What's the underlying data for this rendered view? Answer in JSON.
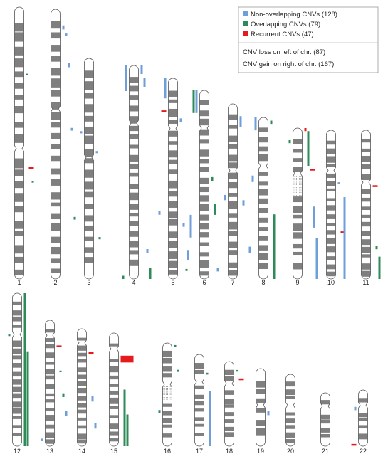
{
  "legend": {
    "items": [
      {
        "label": "Non-overlapping CNVs (128)",
        "color": "#6f9fd8"
      },
      {
        "label": "Overlapping CNVs (79)",
        "color": "#2e8b57"
      },
      {
        "label": "Recurrent CNVs (47)",
        "color": "#e41a1c"
      }
    ],
    "notes": [
      "CNV loss on left of chr. (87)",
      "CNV gain on right of chr. (167)"
    ]
  },
  "colors": {
    "band_dark": "#7f7f7f",
    "band_light": "#ffffff",
    "outline": "#555555",
    "non_overlapping": "#6f9fd8",
    "overlapping": "#2e8b57",
    "recurrent": "#e41a1c"
  },
  "chromosomes": [
    {
      "label": "1",
      "centromere": 0.52,
      "bands": 22,
      "seed": 1,
      "cnvs": [
        {
          "side": "right",
          "type": "overlapping",
          "start": 0.245,
          "end": 0.25
        },
        {
          "side": "right",
          "type": "recurrent",
          "start": 0.588,
          "end": 0.592
        },
        {
          "side": "right",
          "type": "overlapping",
          "start": 0.64,
          "end": 0.644
        }
      ]
    },
    {
      "label": "2",
      "centromere": 0.37,
      "bands": 24,
      "seed": 2,
      "cnvs": [
        {
          "side": "right",
          "type": "non_overlapping",
          "start": 0.06,
          "end": 0.075
        },
        {
          "side": "right",
          "type": "non_overlapping",
          "start": 0.09,
          "end": 0.1
        },
        {
          "side": "right",
          "type": "non_overlapping",
          "start": 0.2,
          "end": 0.215
        },
        {
          "side": "right",
          "type": "non_overlapping",
          "start": 0.44,
          "end": 0.45
        },
        {
          "side": "right",
          "type": "overlapping",
          "start": 0.77,
          "end": 0.78
        }
      ]
    },
    {
      "label": "3",
      "centromere": 0.45,
      "bands": 20,
      "seed": 3,
      "cnvs": [
        {
          "side": "left",
          "type": "non_overlapping",
          "start": 0.33,
          "end": 0.34
        },
        {
          "side": "right",
          "type": "non_overlapping",
          "start": 0.42,
          "end": 0.43
        },
        {
          "side": "right",
          "type": "overlapping",
          "start": 0.81,
          "end": 0.82
        }
      ]
    },
    {
      "label": "4",
      "centromere": 0.27,
      "bands": 22,
      "seed": 4,
      "cnvs": [
        {
          "side": "left",
          "type": "non_overlapping",
          "start": 0.0,
          "end": 0.12
        },
        {
          "side": "right",
          "type": "non_overlapping",
          "start": 0.0,
          "end": 0.04
        },
        {
          "side": "right",
          "type": "non_overlapping",
          "start": 0.06,
          "end": 0.1
        },
        {
          "side": "right",
          "type": "non_overlapping",
          "start": 0.86,
          "end": 0.88
        },
        {
          "side": "right",
          "type": "overlapping",
          "start": 0.95,
          "end": 1.0
        },
        {
          "side": "left",
          "type": "overlapping",
          "start": 0.985,
          "end": 1.0
        }
      ]
    },
    {
      "label": "5",
      "centromere": 0.25,
      "bands": 20,
      "seed": 5,
      "cnvs": [
        {
          "side": "left",
          "type": "non_overlapping",
          "start": 0.0,
          "end": 0.1
        },
        {
          "side": "left",
          "type": "recurrent",
          "start": 0.16,
          "end": 0.165
        },
        {
          "side": "right",
          "type": "non_overlapping",
          "start": 0.2,
          "end": 0.22
        },
        {
          "side": "left",
          "type": "non_overlapping",
          "start": 0.66,
          "end": 0.68
        },
        {
          "side": "right",
          "type": "non_overlapping",
          "start": 0.72,
          "end": 0.74
        },
        {
          "side": "right",
          "type": "overlapping",
          "start": 0.95,
          "end": 0.96
        }
      ]
    },
    {
      "label": "6",
      "centromere": 0.2,
      "bands": 20,
      "seed": 6,
      "cnvs": [
        {
          "side": "left",
          "type": "non_overlapping",
          "start": 0.0,
          "end": 0.12
        },
        {
          "side": "left",
          "type": "overlapping",
          "start": 0.0,
          "end": 0.12
        },
        {
          "side": "right",
          "type": "overlapping",
          "start": 0.46,
          "end": 0.48
        },
        {
          "side": "right",
          "type": "overlapping",
          "start": 0.6,
          "end": 0.66
        },
        {
          "side": "left",
          "type": "non_overlapping",
          "start": 0.66,
          "end": 0.78
        },
        {
          "side": "left",
          "type": "non_overlapping",
          "start": 0.85,
          "end": 0.9
        },
        {
          "side": "right",
          "type": "non_overlapping",
          "start": 0.94,
          "end": 0.96
        }
      ]
    },
    {
      "label": "7",
      "centromere": 0.38,
      "bands": 18,
      "seed": 7,
      "cnvs": [
        {
          "side": "right",
          "type": "non_overlapping",
          "start": 0.07,
          "end": 0.13
        },
        {
          "side": "left",
          "type": "non_overlapping",
          "start": 0.52,
          "end": 0.55
        },
        {
          "side": "right",
          "type": "non_overlapping",
          "start": 0.55,
          "end": 0.58
        }
      ]
    },
    {
      "label": "8",
      "centromere": 0.3,
      "bands": 18,
      "seed": 8,
      "cnvs": [
        {
          "side": "left",
          "type": "non_overlapping",
          "start": 0.0,
          "end": 0.08
        },
        {
          "side": "right",
          "type": "overlapping",
          "start": 0.02,
          "end": 0.04
        },
        {
          "side": "left",
          "type": "non_overlapping",
          "start": 0.36,
          "end": 0.4
        },
        {
          "side": "right",
          "type": "overlapping",
          "start": 0.6,
          "end": 1.0
        },
        {
          "side": "left",
          "type": "non_overlapping",
          "start": 0.8,
          "end": 0.84
        }
      ]
    },
    {
      "label": "9",
      "centromere": 0.3,
      "bands": 16,
      "seed": 9,
      "heterochromatin": [
        0.32,
        0.45
      ],
      "cnvs": [
        {
          "side": "right",
          "type": "recurrent",
          "start": 0.0,
          "end": 0.02
        },
        {
          "side": "right",
          "type": "overlapping",
          "start": 0.02,
          "end": 0.25
        },
        {
          "side": "left",
          "type": "overlapping",
          "start": 0.08,
          "end": 0.1
        },
        {
          "side": "right",
          "type": "recurrent",
          "start": 0.27,
          "end": 0.28
        },
        {
          "side": "right",
          "type": "non_overlapping",
          "start": 0.52,
          "end": 0.66
        },
        {
          "side": "right",
          "type": "non_overlapping",
          "start": 0.73,
          "end": 1.0
        }
      ]
    },
    {
      "label": "10",
      "centromere": 0.27,
      "bands": 18,
      "seed": 10,
      "cnvs": [
        {
          "side": "right",
          "type": "non_overlapping",
          "start": 0.35,
          "end": 0.36
        },
        {
          "side": "right",
          "type": "recurrent",
          "start": 0.68,
          "end": 0.69
        },
        {
          "side": "right",
          "type": "non_overlapping",
          "start": 0.45,
          "end": 1.0
        }
      ]
    },
    {
      "label": "11",
      "centromere": 0.35,
      "bands": 18,
      "seed": 11,
      "cnvs": [
        {
          "side": "right",
          "type": "recurrent",
          "start": 0.37,
          "end": 0.38
        },
        {
          "side": "right",
          "type": "overlapping",
          "start": 0.78,
          "end": 0.8
        },
        {
          "side": "right",
          "type": "overlapping",
          "start": 0.85,
          "end": 1.0
        }
      ]
    },
    {
      "label": "12",
      "centromere": 0.27,
      "bands": 20,
      "seed": 12,
      "cnvs": [
        {
          "side": "right",
          "type": "overlapping",
          "start": 0.0,
          "end": 1.0
        },
        {
          "side": "left",
          "type": "overlapping",
          "start": 0.27,
          "end": 0.28
        },
        {
          "side": "right",
          "type": "overlapping",
          "start": 0.38,
          "end": 1.0
        }
      ]
    },
    {
      "label": "13",
      "centromere": 0.12,
      "bands": 16,
      "seed": 13,
      "acrocentric": true,
      "cnvs": [
        {
          "side": "right",
          "type": "recurrent",
          "start": 0.2,
          "end": 0.22
        },
        {
          "side": "right",
          "type": "overlapping",
          "start": 0.4,
          "end": 0.41
        },
        {
          "side": "right",
          "type": "overlapping",
          "start": 0.58,
          "end": 0.61
        },
        {
          "side": "right",
          "type": "non_overlapping",
          "start": 0.72,
          "end": 0.76
        },
        {
          "side": "left",
          "type": "non_overlapping",
          "start": 0.94,
          "end": 0.96
        }
      ]
    },
    {
      "label": "14",
      "centromere": 0.12,
      "bands": 16,
      "seed": 14,
      "acrocentric": true,
      "cnvs": [
        {
          "side": "right",
          "type": "recurrent",
          "start": 0.2,
          "end": 0.22
        },
        {
          "side": "right",
          "type": "non_overlapping",
          "start": 0.57,
          "end": 0.62
        },
        {
          "side": "right",
          "type": "non_overlapping",
          "start": 0.8,
          "end": 0.85
        }
      ]
    },
    {
      "label": "15",
      "centromere": 0.14,
      "bands": 14,
      "seed": 15,
      "acrocentric": true,
      "cnvs": [
        {
          "side": "right",
          "type": "recurrent",
          "start": 0.2,
          "end": 0.26,
          "width": 18
        },
        {
          "side": "right",
          "type": "overlapping",
          "start": 0.5,
          "end": 1.0
        },
        {
          "side": "right",
          "type": "overlapping",
          "start": 0.72,
          "end": 1.0
        }
      ]
    },
    {
      "label": "16",
      "centromere": 0.4,
      "bands": 14,
      "seed": 16,
      "heterochromatin": [
        0.42,
        0.55
      ],
      "cnvs": [
        {
          "side": "right",
          "type": "overlapping",
          "start": 0.02,
          "end": 0.04
        },
        {
          "side": "right",
          "type": "overlapping",
          "start": 0.26,
          "end": 0.28
        },
        {
          "side": "left",
          "type": "overlapping",
          "start": 0.65,
          "end": 0.68
        }
      ]
    },
    {
      "label": "17",
      "centromere": 0.3,
      "bands": 12,
      "seed": 17,
      "cnvs": [
        {
          "side": "right",
          "type": "overlapping",
          "start": 0.2,
          "end": 0.22
        },
        {
          "side": "right",
          "type": "non_overlapping",
          "start": 0.4,
          "end": 1.0
        }
      ]
    },
    {
      "label": "18",
      "centromere": 0.26,
      "bands": 12,
      "seed": 18,
      "cnvs": [
        {
          "side": "right",
          "type": "overlapping",
          "start": 0.1,
          "end": 0.12
        },
        {
          "side": "right",
          "type": "recurrent",
          "start": 0.2,
          "end": 0.22
        }
      ]
    },
    {
      "label": "19",
      "centromere": 0.47,
      "bands": 8,
      "seed": 19,
      "cnvs": [
        {
          "side": "right",
          "type": "non_overlapping",
          "start": 0.55,
          "end": 0.6
        }
      ]
    },
    {
      "label": "20",
      "centromere": 0.43,
      "bands": 10,
      "seed": 20,
      "cnvs": []
    },
    {
      "label": "21",
      "centromere": 0.25,
      "bands": 8,
      "seed": 21,
      "acrocentric": true,
      "cnvs": []
    },
    {
      "label": "22",
      "centromere": 0.27,
      "bands": 8,
      "seed": 22,
      "acrocentric": true,
      "cnvs": [
        {
          "side": "left",
          "type": "non_overlapping",
          "start": 0.3,
          "end": 0.36
        },
        {
          "side": "left",
          "type": "recurrent",
          "start": 0.96,
          "end": 1.0
        }
      ]
    }
  ]
}
